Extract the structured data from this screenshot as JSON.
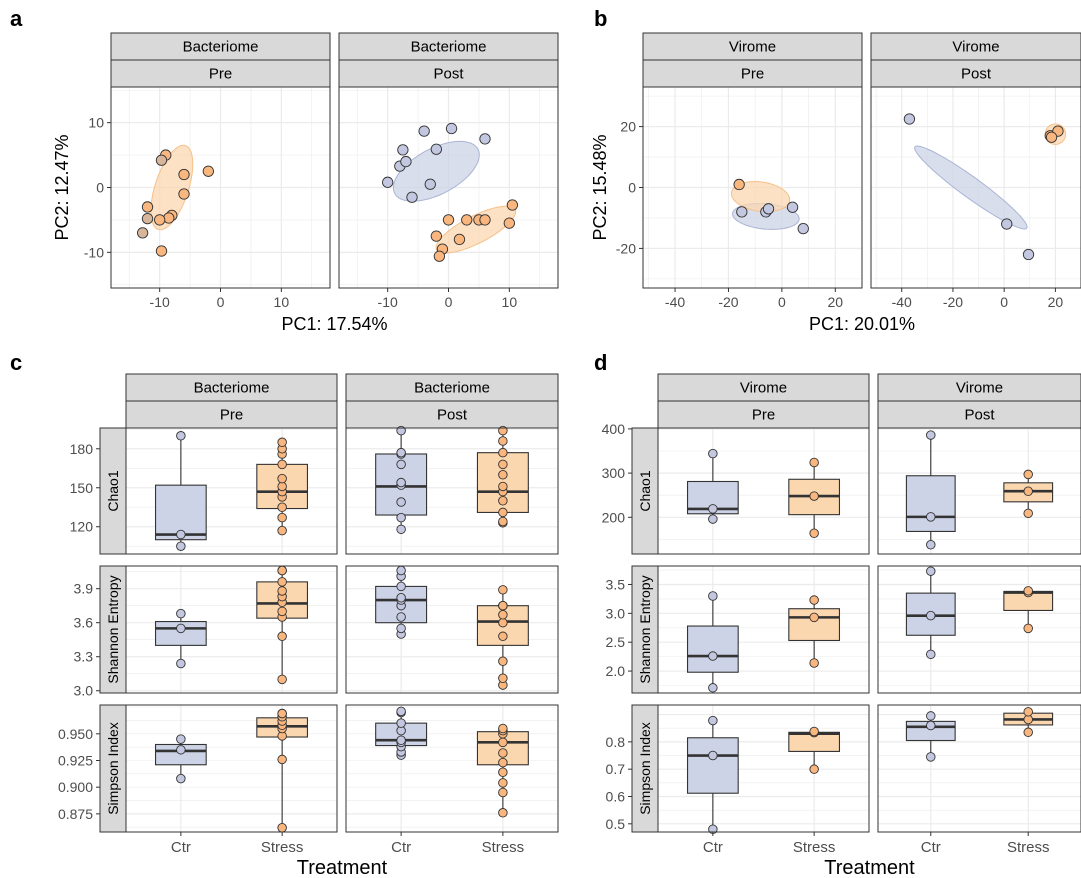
{
  "colors": {
    "ctr_fill": "#ccd3e6",
    "ctr_point": "#c3c8e0",
    "stress_fill": "#fbd7b0",
    "stress_point": "#f9b77f",
    "strip": "#d9d9d9",
    "grid": "#ebebeb",
    "axis": "#333333"
  },
  "panel_letters": [
    "a",
    "b",
    "c",
    "d"
  ],
  "treatment_title": "Treatment",
  "chart_data": [
    {
      "id": "a",
      "type": "scatter",
      "xlabel": "PC1: 17.54%",
      "ylabel": "PC2: 12.47%",
      "xlim": [
        -18,
        18
      ],
      "ylim": [
        -15.5,
        15.5
      ],
      "xticks": [
        -10,
        0,
        10
      ],
      "yticks": [
        -10,
        0,
        10
      ],
      "facets": [
        {
          "top": "Bacteriome",
          "bottom": "Pre",
          "ellipses": [
            {
              "group": "stress",
              "cx": -8,
              "cy": 0,
              "rx": 14.5,
              "ry": 5.5,
              "angle": 72
            }
          ],
          "series": [
            {
              "group": "stress",
              "points": [
                [
                  -9,
                  5
                ],
                [
                  -6,
                  2
                ],
                [
                  -2,
                  2.5
                ],
                [
                  -6,
                  -1
                ],
                [
                  -12,
                  -3
                ],
                [
                  -8,
                  -4.3
                ],
                [
                  -8.5,
                  -4.7
                ],
                [
                  -10,
                  -5
                ],
                [
                  -9.7,
                  -9.8
                ]
              ]
            },
            {
              "group": "mixed",
              "points": [
                [
                  -9.7,
                  4.2
                ],
                [
                  -12,
                  -4.8
                ],
                [
                  -12.8,
                  -7
                ]
              ]
            }
          ]
        },
        {
          "top": "Bacteriome",
          "bottom": "Post",
          "ellipses": [
            {
              "group": "ctr",
              "cx": -2,
              "cy": 2.5,
              "rx": 15.5,
              "ry": 7.5,
              "angle": 28
            },
            {
              "group": "stress",
              "cx": 4.5,
              "cy": -6.5,
              "rx": 14.5,
              "ry": 4.5,
              "angle": 27
            }
          ],
          "series": [
            {
              "group": "ctr",
              "points": [
                [
                  -10,
                  0.8
                ],
                [
                  -8,
                  3.3
                ],
                [
                  -7,
                  4
                ],
                [
                  -7.5,
                  5.8
                ],
                [
                  -4,
                  8.7
                ],
                [
                  0.5,
                  9.1
                ],
                [
                  -2,
                  5.9
                ],
                [
                  -3,
                  0.5
                ],
                [
                  -6,
                  -1.5
                ],
                [
                  6,
                  7.5
                ]
              ]
            },
            {
              "group": "stress",
              "points": [
                [
                  -2,
                  -7.5
                ],
                [
                  0,
                  -5
                ],
                [
                  -1,
                  -9.5
                ],
                [
                  -1.5,
                  -10.6
                ],
                [
                  1.8,
                  -8
                ],
                [
                  3,
                  -5
                ],
                [
                  5,
                  -5
                ],
                [
                  6,
                  -5
                ],
                [
                  10,
                  -5.5
                ],
                [
                  10.5,
                  -2.7
                ]
              ]
            }
          ]
        }
      ]
    },
    {
      "id": "b",
      "type": "scatter",
      "xlabel": "PC1: 20.01%",
      "ylabel": "PC2: 15.48%",
      "xlim": [
        -52,
        30
      ],
      "ylim": [
        -33,
        33
      ],
      "xticks": [
        -40,
        -20,
        0,
        20
      ],
      "yticks": [
        -20,
        0,
        20
      ],
      "facets": [
        {
          "top": "Virome",
          "bottom": "Pre",
          "ellipses": [
            {
              "group": "ctr",
              "cx": -6,
              "cy": -9.5,
              "rx": 25,
              "ry": 9.5,
              "angle": -5
            },
            {
              "group": "stress",
              "cx": -8,
              "cy": -3,
              "rx": 22,
              "ry": 11,
              "angle": -8
            }
          ],
          "series": [
            {
              "group": "ctr",
              "points": [
                [
                  -15,
                  -8
                ],
                [
                  -6,
                  -8
                ],
                [
                  -5,
                  -7
                ],
                [
                  4,
                  -6.5
                ],
                [
                  8,
                  -13.5
                ]
              ]
            },
            {
              "group": "stress",
              "points": [
                [
                  -16,
                  1
                ]
              ]
            }
          ]
        },
        {
          "top": "Virome",
          "bottom": "Post",
          "ellipses": [
            {
              "group": "ctr",
              "cx": -13,
              "cy": 0,
              "rx": 54,
              "ry": 8,
              "angle": -36
            },
            {
              "group": "stress",
              "cx": 20,
              "cy": 17.5,
              "rx": 8,
              "ry": 8,
              "angle": 0
            }
          ],
          "series": [
            {
              "group": "ctr",
              "points": [
                [
                  -37,
                  22.5
                ],
                [
                  1,
                  -12
                ],
                [
                  9.5,
                  -22
                ]
              ]
            },
            {
              "group": "stress",
              "points": [
                [
                  18,
                  17
                ],
                [
                  21,
                  18.5
                ],
                [
                  18.5,
                  16.5
                ]
              ]
            }
          ]
        }
      ]
    },
    {
      "id": "c",
      "type": "box",
      "categories": [
        "Ctr",
        "Stress"
      ],
      "xlabel": "Treatment",
      "facet_top": "Bacteriome",
      "facets": [
        "Pre",
        "Post"
      ],
      "rows": [
        {
          "metric": "Chao1",
          "ylim": [
            99,
            196
          ],
          "yticks": [
            120,
            150,
            180
          ],
          "boxes": [
            [
              {
                "q1": 110,
                "median": 114,
                "q3": 152,
                "lo": 105,
                "hi": 190,
                "points": [
                  114,
                  105,
                  190
                ]
              },
              {
                "q1": 134,
                "median": 147,
                "q3": 168,
                "lo": 117,
                "hi": 185,
                "points": [
                  117,
                  127,
                  135,
                  143,
                  147,
                  151,
                  157,
                  168,
                  176,
                  180,
                  185
                ]
              }
            ],
            [
              {
                "q1": 129,
                "median": 151,
                "q3": 176,
                "lo": 118,
                "hi": 194,
                "points": [
                  118,
                  127,
                  139,
                  152,
                  154,
                  168,
                  176,
                  177,
                  194
                ]
              },
              {
                "q1": 131,
                "median": 147,
                "q3": 177,
                "lo": 123,
                "hi": 194,
                "points": [
                  123,
                  124,
                  131,
                  140,
                  147,
                  151,
                  160,
                  168,
                  177,
                  186,
                  194
                ]
              }
            ]
          ]
        },
        {
          "metric": "Shannon Entropy",
          "ylim": [
            2.98,
            4.1
          ],
          "yticks": [
            3.0,
            3.3,
            3.6,
            3.9
          ],
          "boxes": [
            [
              {
                "q1": 3.4,
                "median": 3.55,
                "q3": 3.61,
                "lo": 3.24,
                "hi": 3.68,
                "points": [
                  3.24,
                  3.55,
                  3.68
                ]
              },
              {
                "q1": 3.64,
                "median": 3.77,
                "q3": 3.96,
                "lo": 3.1,
                "hi": 4.06,
                "points": [
                  3.1,
                  3.48,
                  3.65,
                  3.7,
                  3.78,
                  3.83,
                  3.88,
                  3.96,
                  4.06,
                  4.06
                ]
              }
            ],
            [
              {
                "q1": 3.6,
                "median": 3.8,
                "q3": 3.92,
                "lo": 3.5,
                "hi": 4.06,
                "points": [
                  3.5,
                  3.55,
                  3.65,
                  3.75,
                  3.8,
                  3.82,
                  3.92,
                  4.01,
                  4.06
                ]
              },
              {
                "q1": 3.4,
                "median": 3.61,
                "q3": 3.75,
                "lo": 3.05,
                "hi": 3.89,
                "points": [
                  3.05,
                  3.11,
                  3.26,
                  3.48,
                  3.6,
                  3.67,
                  3.75,
                  3.75,
                  3.75,
                  3.89
                ]
              }
            ]
          ]
        },
        {
          "metric": "Simpson Index",
          "ylim": [
            0.858,
            0.977
          ],
          "yticks": [
            0.875,
            0.9,
            0.925,
            0.95
          ],
          "boxes": [
            [
              {
                "q1": 0.921,
                "median": 0.934,
                "q3": 0.94,
                "lo": 0.908,
                "hi": 0.945,
                "points": [
                  0.908,
                  0.935,
                  0.945
                ]
              },
              {
                "q1": 0.947,
                "median": 0.957,
                "q3": 0.965,
                "lo": 0.862,
                "hi": 0.969,
                "points": [
                  0.862,
                  0.926,
                  0.948,
                  0.955,
                  0.958,
                  0.962,
                  0.966,
                  0.969,
                  0.969
                ]
              }
            ],
            [
              {
                "q1": 0.939,
                "median": 0.944,
                "q3": 0.96,
                "lo": 0.93,
                "hi": 0.971,
                "points": [
                  0.93,
                  0.933,
                  0.938,
                  0.942,
                  0.944,
                  0.953,
                  0.96,
                  0.97,
                  0.971
                ]
              },
              {
                "q1": 0.921,
                "median": 0.942,
                "q3": 0.952,
                "lo": 0.876,
                "hi": 0.955,
                "points": [
                  0.876,
                  0.895,
                  0.904,
                  0.914,
                  0.923,
                  0.932,
                  0.942,
                  0.95,
                  0.953,
                  0.955
                ]
              }
            ]
          ]
        }
      ]
    },
    {
      "id": "d",
      "type": "box",
      "categories": [
        "Ctr",
        "Stress"
      ],
      "xlabel": "Treatment",
      "facet_top": "Virome",
      "facets": [
        "Pre",
        "Post"
      ],
      "rows": [
        {
          "metric": "Chao1",
          "ylim": [
            117,
            402
          ],
          "yticks": [
            200,
            300,
            400
          ],
          "boxes": [
            [
              {
                "q1": 208,
                "median": 219,
                "q3": 281,
                "lo": 196,
                "hi": 344,
                "points": [
                  196,
                  219,
                  344
                ]
              },
              {
                "q1": 206,
                "median": 248,
                "q3": 286,
                "lo": 164,
                "hi": 324,
                "points": [
                  164,
                  248,
                  324
                ]
              }
            ],
            [
              {
                "q1": 168,
                "median": 201,
                "q3": 294,
                "lo": 138,
                "hi": 386,
                "points": [
                  138,
                  201,
                  386
                ]
              },
              {
                "q1": 235,
                "median": 259,
                "q3": 278,
                "lo": 209,
                "hi": 297,
                "points": [
                  209,
                  259,
                  297
                ]
              }
            ]
          ]
        },
        {
          "metric": "Shannon Entropy",
          "ylim": [
            1.62,
            3.82
          ],
          "yticks": [
            2.0,
            2.5,
            3.0,
            3.5
          ],
          "boxes": [
            [
              {
                "q1": 1.98,
                "median": 2.26,
                "q3": 2.78,
                "lo": 1.71,
                "hi": 3.3,
                "points": [
                  1.71,
                  2.26,
                  3.3
                ]
              },
              {
                "q1": 2.53,
                "median": 2.93,
                "q3": 3.08,
                "lo": 2.14,
                "hi": 3.23,
                "points": [
                  2.14,
                  2.93,
                  3.23
                ]
              }
            ],
            [
              {
                "q1": 2.62,
                "median": 2.96,
                "q3": 3.35,
                "lo": 2.29,
                "hi": 3.73,
                "points": [
                  2.29,
                  2.96,
                  3.73
                ]
              },
              {
                "q1": 3.05,
                "median": 3.36,
                "q3": 3.38,
                "lo": 2.74,
                "hi": 3.39,
                "points": [
                  2.74,
                  3.36,
                  3.39
                ]
              }
            ]
          ]
        },
        {
          "metric": "Simpson Index",
          "ylim": [
            0.47,
            0.935
          ],
          "yticks": [
            0.5,
            0.6,
            0.7,
            0.8
          ],
          "boxes": [
            [
              {
                "q1": 0.612,
                "median": 0.75,
                "q3": 0.815,
                "lo": 0.48,
                "hi": 0.878,
                "points": [
                  0.48,
                  0.75,
                  0.878
                ]
              },
              {
                "q1": 0.765,
                "median": 0.83,
                "q3": 0.835,
                "lo": 0.7,
                "hi": 0.838,
                "points": [
                  0.7,
                  0.834,
                  0.838
                ]
              }
            ],
            [
              {
                "q1": 0.805,
                "median": 0.855,
                "q3": 0.875,
                "lo": 0.745,
                "hi": 0.895,
                "points": [
                  0.745,
                  0.86,
                  0.895
                ]
              },
              {
                "q1": 0.862,
                "median": 0.882,
                "q3": 0.905,
                "lo": 0.835,
                "hi": 0.91,
                "points": [
                  0.835,
                  0.882,
                  0.91
                ]
              }
            ]
          ]
        }
      ]
    }
  ]
}
